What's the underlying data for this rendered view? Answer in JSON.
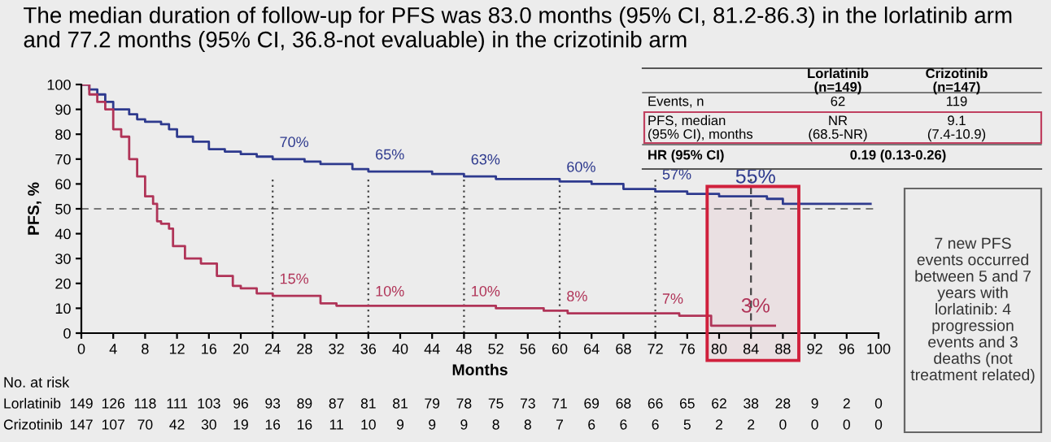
{
  "chart_data": {
    "type": "step",
    "title": "The median duration of follow-up for PFS was 83.0 months (95% CI, 81.2-86.3) in the lorlatinib arm and 77.2 months (95% CI, 36.8-not evaluable) in the crizotinib arm",
    "xlabel": "Months",
    "ylabel": "PFS, %",
    "xlim": [
      0,
      100
    ],
    "xticks": [
      0,
      4,
      8,
      12,
      16,
      20,
      24,
      28,
      32,
      36,
      40,
      44,
      48,
      52,
      56,
      60,
      64,
      68,
      72,
      76,
      80,
      84,
      88,
      92,
      96,
      100
    ],
    "ylim": [
      0,
      100
    ],
    "yticks": [
      0,
      10,
      20,
      30,
      40,
      50,
      60,
      70,
      80,
      90,
      100
    ],
    "grid": false,
    "legend": false,
    "marker": "none",
    "line_style": "solid",
    "series": [
      {
        "color": "#2e3a8e",
        "x": [
          0,
          1,
          2,
          3,
          4,
          5,
          6,
          7,
          8,
          10,
          11,
          12,
          14,
          16,
          18,
          20,
          22,
          24,
          28,
          30,
          32,
          34,
          36,
          40,
          44,
          48,
          52,
          56,
          60,
          64,
          68,
          72,
          76,
          80,
          84,
          86,
          88,
          92,
          99
        ],
        "values": [
          100,
          98,
          96,
          93,
          90,
          90,
          88,
          86,
          85,
          84,
          82,
          79,
          77,
          74,
          73,
          72,
          71,
          70,
          69,
          68,
          68,
          66,
          65,
          65,
          64,
          63,
          62,
          62,
          61,
          60,
          58,
          57,
          56,
          55,
          55,
          54,
          52,
          52,
          52
        ]
      },
      {
        "color": "#b03458",
        "x": [
          0,
          1,
          2,
          3,
          4,
          5,
          6,
          7,
          8,
          9,
          9.5,
          10,
          11,
          11.5,
          13,
          15,
          17,
          19,
          20,
          22,
          24,
          30,
          32,
          36,
          48,
          52,
          58,
          60,
          61,
          72,
          75,
          78,
          79,
          87
        ],
        "values": [
          100,
          96,
          93,
          90,
          82,
          79,
          70,
          63,
          55,
          52,
          45,
          44,
          42,
          35,
          30,
          28,
          23,
          19,
          18,
          16,
          15,
          12,
          11,
          11,
          11,
          10,
          9,
          9,
          8,
          8,
          7,
          7,
          3,
          3
        ]
      }
    ],
    "ref_lines": [
      {
        "axis": "y",
        "value": 50,
        "line_style": "dashed",
        "color": "#777777"
      },
      {
        "axis": "x",
        "value": 24,
        "line_style": "dotted",
        "color": "#444444"
      },
      {
        "axis": "x",
        "value": 36,
        "line_style": "dotted",
        "color": "#444444"
      },
      {
        "axis": "x",
        "value": 48,
        "line_style": "dotted",
        "color": "#444444"
      },
      {
        "axis": "x",
        "value": 60,
        "line_style": "dotted",
        "color": "#444444"
      },
      {
        "axis": "x",
        "value": 72,
        "line_style": "dotted",
        "color": "#444444"
      },
      {
        "axis": "x",
        "value": 84,
        "line_style": "dashed",
        "color": "#444444"
      }
    ],
    "bands": [
      {
        "axis": "x",
        "from": 78.5,
        "to": 90,
        "color": "#d0203c"
      }
    ],
    "annotations": [
      {
        "text": "70%",
        "x": 24,
        "y": 70
      },
      {
        "text": "15%",
        "x": 24,
        "y": 15
      },
      {
        "text": "65%",
        "x": 36,
        "y": 65
      },
      {
        "text": "10%",
        "x": 36,
        "y": 10
      },
      {
        "text": "63%",
        "x": 48,
        "y": 63
      },
      {
        "text": "10%",
        "x": 48,
        "y": 10
      },
      {
        "text": "60%",
        "x": 60,
        "y": 60
      },
      {
        "text": "8%",
        "x": 60,
        "y": 8
      },
      {
        "text": "57%",
        "x": 72,
        "y": 57
      },
      {
        "text": "7%",
        "x": 72,
        "y": 7
      },
      {
        "text": "55%",
        "x": 84,
        "y": 55
      },
      {
        "text": "3%",
        "x": 84,
        "y": 3
      },
      "No. at risk",
      "Lorlatinib",
      "149",
      "126",
      "118",
      "111",
      "103",
      "96",
      "93",
      "89",
      "87",
      "81",
      "81",
      "79",
      "78",
      "75",
      "73",
      "71",
      "69",
      "68",
      "66",
      "65",
      "62",
      "38",
      "28",
      "9",
      "2",
      "0",
      "Crizotinib",
      "147",
      "107",
      "70",
      "42",
      "30",
      "19",
      "16",
      "16",
      "11",
      "10",
      "9",
      "9",
      "9",
      "8",
      "8",
      "7",
      "6",
      "6",
      "6",
      "5",
      "2",
      "2",
      "0",
      "0",
      "0",
      "0",
      "Lorlatinib\n(n=149)",
      "Crizotinib\n(n=147)",
      "Events, n",
      "62",
      "119",
      "PFS, median\n(95% CI), months",
      "NR\n(68.5-NR)",
      "9.1\n(7.4-10.9)",
      "HR (95% CI)",
      "0.19 (0.13-0.26)",
      "7 new PFS\nevents occurred\nbetween 5 and 7\nyears with\nlorlatinib: 4\nprogression\nevents and 3\ndeaths (not\ntreatment related)"
    ]
  }
}
